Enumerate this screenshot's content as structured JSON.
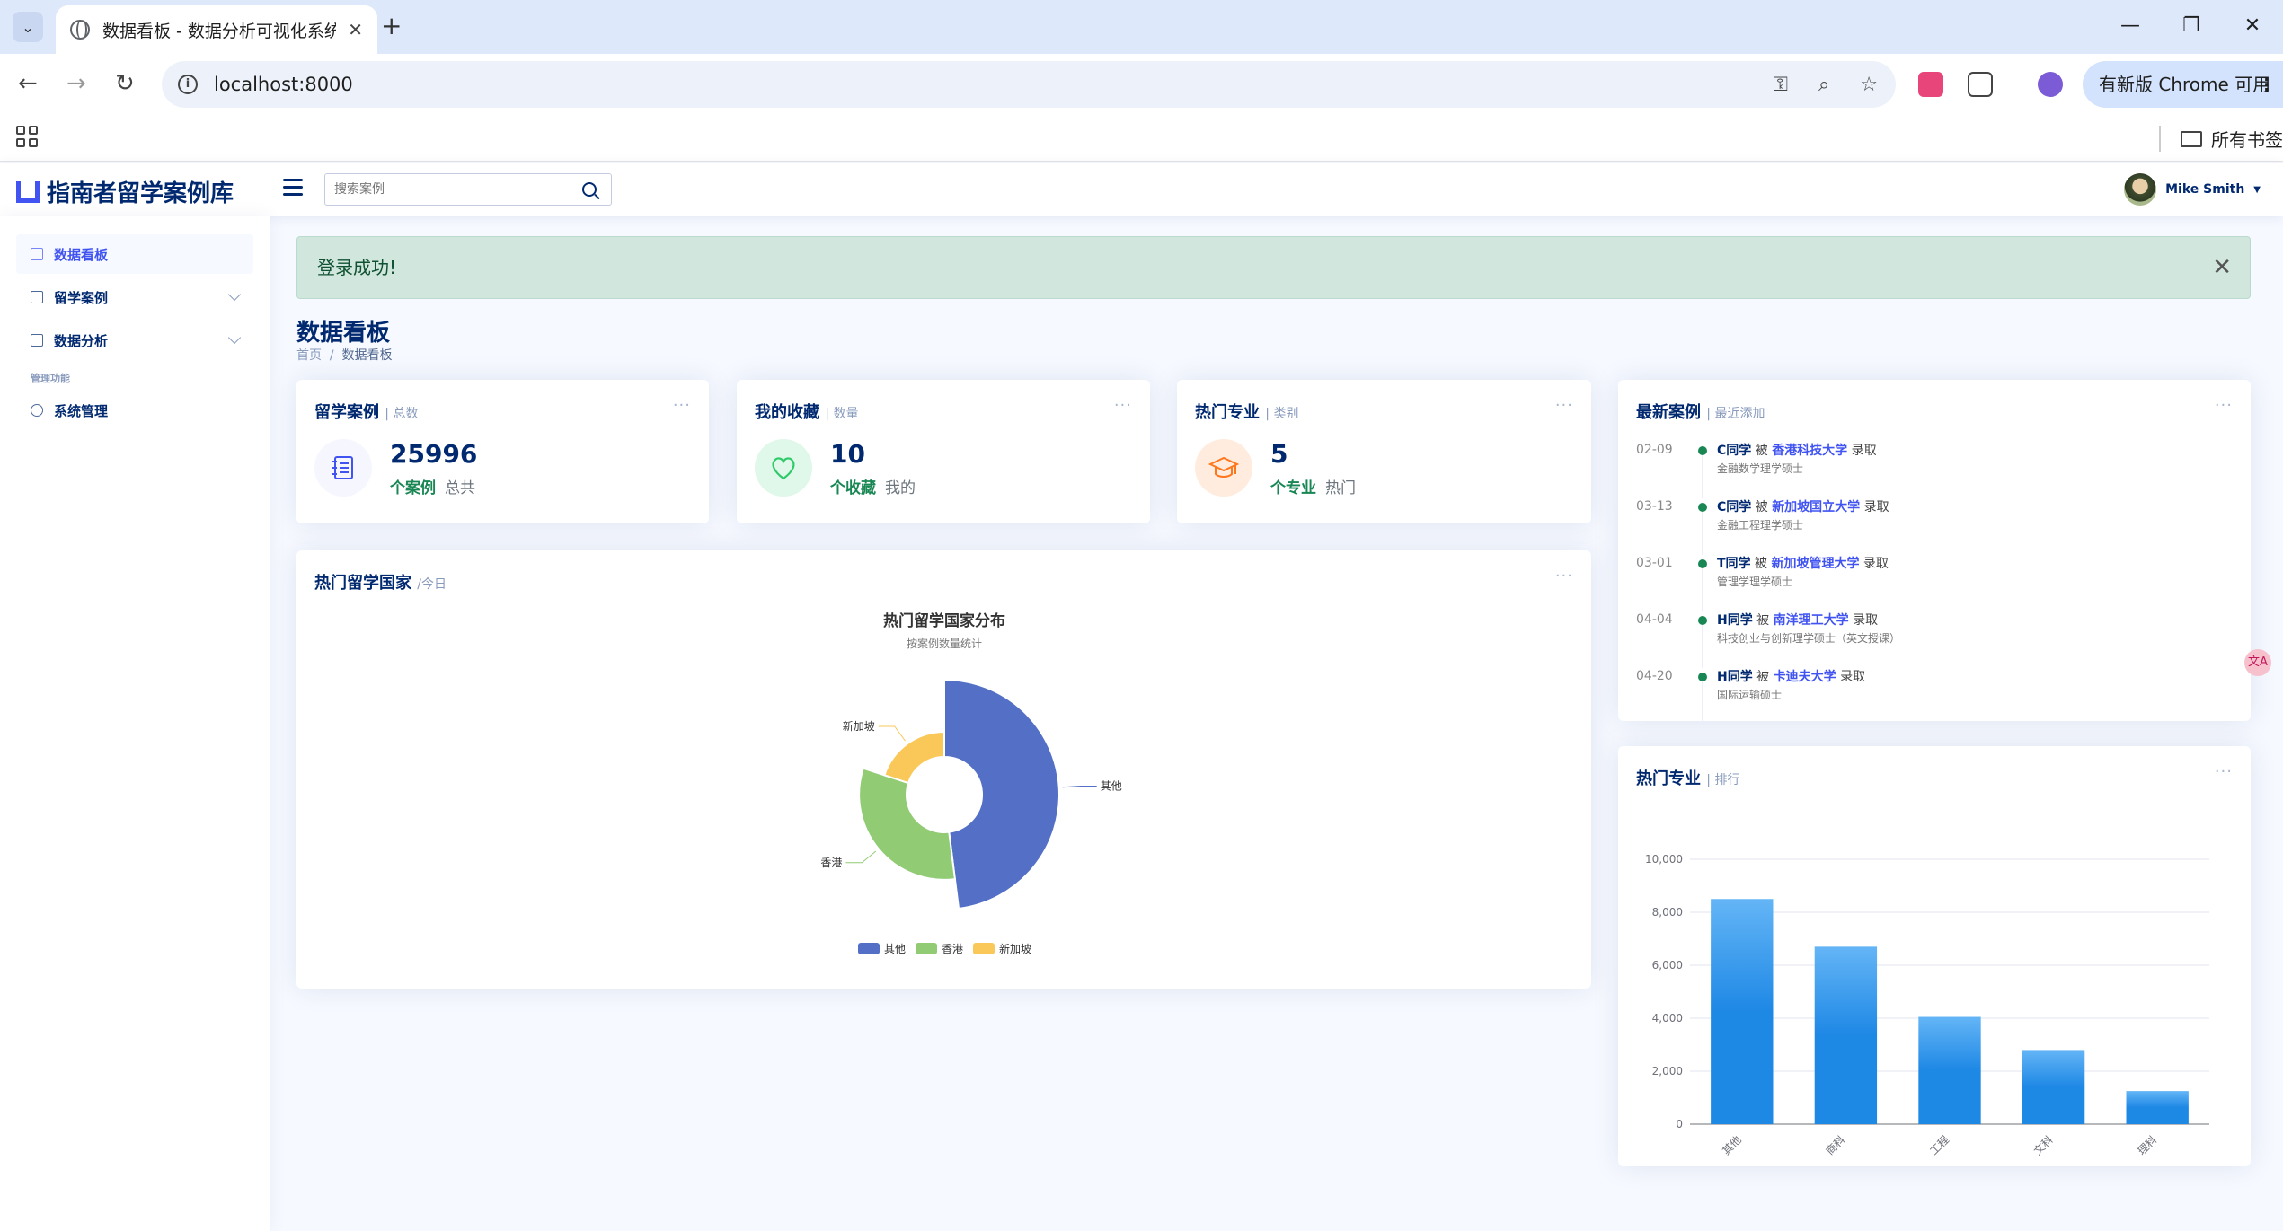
{
  "browser": {
    "tab_title": "数据看板 - 数据分析可视化系统",
    "url": "localhost:8000",
    "update_label": "有新版 Chrome 可用",
    "bookmarks_label": "所有书签",
    "new_tab": "+",
    "tab_close": "✕",
    "win_minimize": "—",
    "win_restore": "❐",
    "win_close": "✕"
  },
  "header": {
    "logo": "指南者留学案例库",
    "search_placeholder": "搜索案例",
    "user": "Mike Smith"
  },
  "sidebar": {
    "items": [
      {
        "label": "数据看板"
      },
      {
        "label": "留学案例"
      },
      {
        "label": "数据分析"
      }
    ],
    "heading": "管理功能",
    "admin": {
      "label": "系统管理"
    }
  },
  "alert": {
    "text": "登录成功!",
    "close": "✕"
  },
  "page": {
    "title": "数据看板",
    "breadcrumb": {
      "home": "首页",
      "sep": "/",
      "current": "数据看板"
    }
  },
  "stats": [
    {
      "title": "留学案例",
      "sub": "| 总数",
      "value": "25996",
      "unit": "个案例",
      "note": "总共"
    },
    {
      "title": "我的收藏",
      "sub": "| 数量",
      "value": "10",
      "unit": "个收藏",
      "note": "我的"
    },
    {
      "title": "热门专业",
      "sub": "| 类别",
      "value": "5",
      "unit": "个专业",
      "note": "热门"
    }
  ],
  "recent": {
    "title": "最新案例",
    "sub": "| 最近添加",
    "items": [
      {
        "date": "02-09",
        "student": "C同学",
        "verb": "被",
        "university": "香港科技大学",
        "result": "录取",
        "program": "金融数学理学硕士"
      },
      {
        "date": "03-13",
        "student": "C同学",
        "verb": "被",
        "university": "新加坡国立大学",
        "result": "录取",
        "program": "金融工程理学硕士"
      },
      {
        "date": "03-01",
        "student": "T同学",
        "verb": "被",
        "university": "新加坡管理大学",
        "result": "录取",
        "program": "管理学理学硕士"
      },
      {
        "date": "04-04",
        "student": "H同学",
        "verb": "被",
        "university": "南洋理工大学",
        "result": "录取",
        "program": "科技创业与创新理学硕士（英文授课）"
      },
      {
        "date": "04-20",
        "student": "H同学",
        "verb": "被",
        "university": "卡迪夫大学",
        "result": "录取",
        "program": "国际运输硕士"
      }
    ]
  },
  "country_card": {
    "title": "热门留学国家",
    "sub": "/今日"
  },
  "major_card": {
    "title": "热门专业",
    "sub": "| 排行"
  },
  "float_badge": "文A",
  "colors": {
    "accent": "#4154f1",
    "navy": "#012970",
    "success": "#198754"
  },
  "chart_data": [
    {
      "type": "pie",
      "title": "热门留学国家分布",
      "subtitle": "按案例数量统计",
      "variant": "rose-donut",
      "categories": [
        "其他",
        "香港",
        "新加坡"
      ],
      "values": [
        12000,
        8000,
        5000
      ],
      "colors": [
        "#5470c6",
        "#91cc75",
        "#fac858"
      ],
      "legend": "bottom"
    },
    {
      "type": "bar",
      "categories": [
        "其他",
        "商科",
        "工程",
        "文科",
        "理科"
      ],
      "values": [
        8500,
        6700,
        4050,
        2800,
        1250
      ],
      "ylim": [
        0,
        10000
      ],
      "yticks": [
        "0",
        "2,000",
        "4,000",
        "6,000",
        "8,000",
        "10,000"
      ],
      "grid": true,
      "color": "#1e88e5"
    }
  ]
}
